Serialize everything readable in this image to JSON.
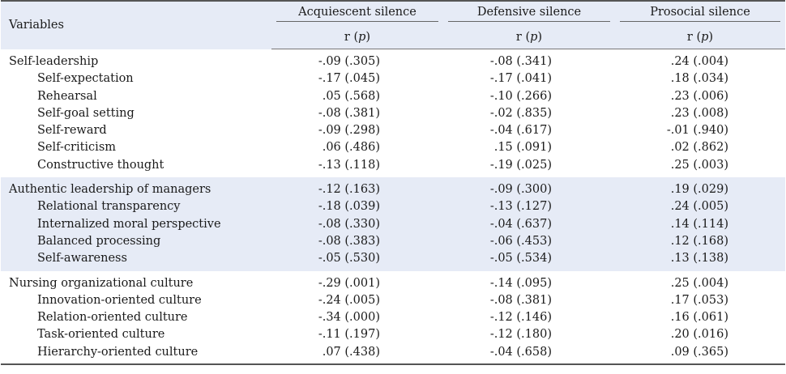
{
  "header": {
    "variables": "Variables",
    "columns": [
      "Acquiescent silence",
      "Defensive silence",
      "Prosocial silence"
    ],
    "stat_label_r": "r (",
    "stat_label_p": "p",
    "stat_label_close": ")"
  },
  "groups": [
    {
      "rows": [
        {
          "name": "Self-leadership",
          "sub": false,
          "values": [
            "-.09 (.305)",
            "-.08 (.341)",
            ".24 (.004)"
          ]
        },
        {
          "name": "Self-expectation",
          "sub": true,
          "values": [
            "-.17 (.045)",
            "-.17 (.041)",
            ".18 (.034)"
          ]
        },
        {
          "name": "Rehearsal",
          "sub": true,
          "values": [
            ".05 (.568)",
            "-.10 (.266)",
            ".23 (.006)"
          ]
        },
        {
          "name": "Self-goal setting",
          "sub": true,
          "values": [
            "-.08 (.381)",
            "-.02 (.835)",
            ".23 (.008)"
          ]
        },
        {
          "name": "Self-reward",
          "sub": true,
          "values": [
            "-.09 (.298)",
            "-.04 (.617)",
            "-.01 (.940)"
          ]
        },
        {
          "name": "Self-criticism",
          "sub": true,
          "values": [
            ".06 (.486)",
            ".15 (.091)",
            ".02 (.862)"
          ]
        },
        {
          "name": "Constructive thought",
          "sub": true,
          "values": [
            "-.13 (.118)",
            "-.19 (.025)",
            ".25 (.003)"
          ]
        }
      ]
    },
    {
      "rows": [
        {
          "name": "Authentic leadership of managers",
          "sub": false,
          "values": [
            "-.12 (.163)",
            "-.09 (.300)",
            ".19 (.029)"
          ]
        },
        {
          "name": "Relational transparency",
          "sub": true,
          "values": [
            "-.18 (.039)",
            "-.13 (.127)",
            ".24 (.005)"
          ]
        },
        {
          "name": "Internalized moral perspective",
          "sub": true,
          "values": [
            "-.08 (.330)",
            "-.04 (.637)",
            ".14 (.114)"
          ]
        },
        {
          "name": "Balanced processing",
          "sub": true,
          "values": [
            "-.08 (.383)",
            "-.06 (.453)",
            ".12 (.168)"
          ]
        },
        {
          "name": "Self-awareness",
          "sub": true,
          "values": [
            "-.05 (.530)",
            "-.05 (.534)",
            ".13 (.138)"
          ]
        }
      ]
    },
    {
      "rows": [
        {
          "name": "Nursing organizational culture",
          "sub": false,
          "values": [
            "-.29 (.001)",
            "-.14 (.095)",
            ".25 (.004)"
          ]
        },
        {
          "name": "Innovation-oriented culture",
          "sub": true,
          "values": [
            "-.24 (.005)",
            "-.08 (.381)",
            ".17 (.053)"
          ]
        },
        {
          "name": "Relation-oriented culture",
          "sub": true,
          "values": [
            "-.34 (.000)",
            "-.12 (.146)",
            ".16 (.061)"
          ]
        },
        {
          "name": "Task-oriented culture",
          "sub": true,
          "values": [
            "-.11 (.197)",
            "-.12 (.180)",
            ".20 (.016)"
          ]
        },
        {
          "name": "Hierarchy-oriented culture",
          "sub": true,
          "values": [
            ".07 (.438)",
            "-.04 (.658)",
            ".09 (.365)"
          ]
        }
      ]
    }
  ]
}
